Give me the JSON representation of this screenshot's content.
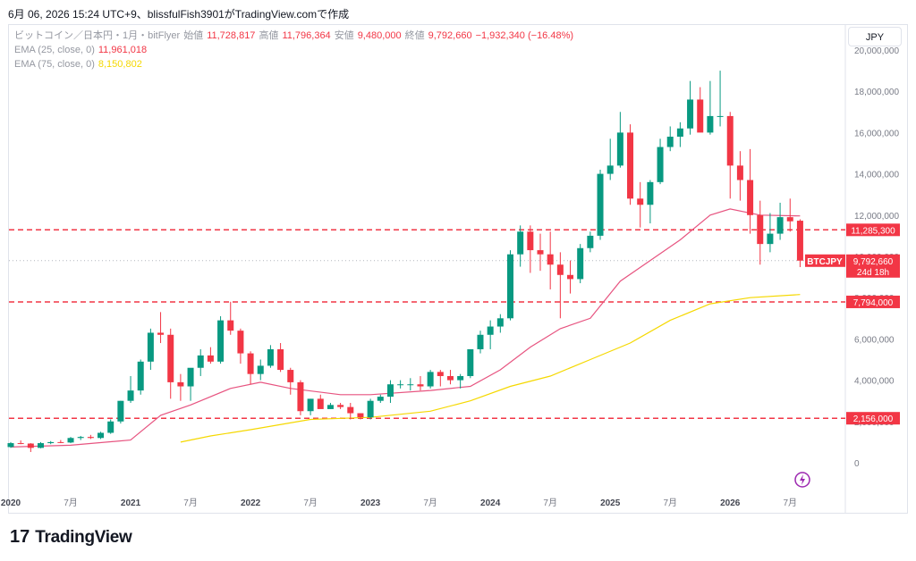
{
  "header": {
    "text": "6月 06, 2026 15:24 UTC+9、blissfulFish3901がTradingView.comで作成"
  },
  "legend": {
    "symbol": "ビットコイン／日本円・1月・bitFlyer",
    "open_label": "始値",
    "open": "11,728,817",
    "high_label": "高値",
    "high": "11,796,364",
    "low_label": "安値",
    "low": "9,480,000",
    "close_label": "終値",
    "close": "9,792,660",
    "change": "−1,932,340 (−16.48%)",
    "ema25_label": "EMA (25, close, 0)",
    "ema25_value": "11,961,018",
    "ema75_label": "EMA (75, close, 0)",
    "ema75_value": "8,150,802"
  },
  "currency_button": "JPY",
  "footer": {
    "logo": "17",
    "brand": "TradingView"
  },
  "colors": {
    "up": "#089981",
    "down": "#f23645",
    "ema25": "#e75480",
    "ema75": "#f5d800",
    "hline": "#f23645"
  },
  "chart_data": {
    "type": "candlestick",
    "interval": "1 month",
    "y_ticks": [
      0,
      2000000,
      4000000,
      6000000,
      8000000,
      10000000,
      12000000,
      14000000,
      16000000,
      18000000,
      20000000
    ],
    "y_tick_labels": [
      "0",
      "2,000,000",
      "4,000,000",
      "6,000,000",
      "8,000,000",
      "10,000,000",
      "12,000,000",
      "14,000,000",
      "16,000,000",
      "18,000,000",
      "20,000,000"
    ],
    "x_ticks": [
      {
        "label": "2020",
        "i": 0,
        "bold": true
      },
      {
        "label": "7月",
        "i": 6,
        "bold": false
      },
      {
        "label": "2021",
        "i": 12,
        "bold": true
      },
      {
        "label": "7月",
        "i": 18,
        "bold": false
      },
      {
        "label": "2022",
        "i": 24,
        "bold": true
      },
      {
        "label": "7月",
        "i": 30,
        "bold": false
      },
      {
        "label": "2023",
        "i": 36,
        "bold": true
      },
      {
        "label": "7月",
        "i": 42,
        "bold": false
      },
      {
        "label": "2024",
        "i": 48,
        "bold": true
      },
      {
        "label": "7月",
        "i": 54,
        "bold": false
      },
      {
        "label": "2025",
        "i": 60,
        "bold": true
      },
      {
        "label": "7月",
        "i": 66,
        "bold": false
      },
      {
        "label": "2026",
        "i": 72,
        "bold": true
      },
      {
        "label": "7月",
        "i": 78,
        "bold": false
      }
    ],
    "candles": [
      [
        760000,
        1000000,
        720000,
        950000
      ],
      [
        950000,
        1080000,
        900000,
        930000
      ],
      [
        930000,
        950000,
        520000,
        720000
      ],
      [
        720000,
        1000000,
        700000,
        950000
      ],
      [
        950000,
        1050000,
        900000,
        1000000
      ],
      [
        1000000,
        1100000,
        950000,
        980000
      ],
      [
        980000,
        1250000,
        950000,
        1200000
      ],
      [
        1200000,
        1300000,
        1100000,
        1250000
      ],
      [
        1250000,
        1350000,
        1150000,
        1200000
      ],
      [
        1200000,
        1500000,
        1150000,
        1450000
      ],
      [
        1450000,
        2100000,
        1400000,
        2000000
      ],
      [
        2000000,
        3000000,
        1900000,
        3000000
      ],
      [
        3000000,
        4200000,
        2900000,
        3500000
      ],
      [
        3500000,
        5000000,
        3300000,
        4900000
      ],
      [
        4900000,
        6500000,
        4500000,
        6300000
      ],
      [
        6300000,
        7300000,
        5800000,
        6200000
      ],
      [
        6200000,
        6500000,
        3100000,
        3900000
      ],
      [
        3900000,
        4300000,
        3000000,
        3700000
      ],
      [
        3700000,
        4500000,
        3000000,
        4600000
      ],
      [
        4600000,
        5500000,
        4200000,
        5200000
      ],
      [
        5200000,
        5600000,
        4800000,
        4900000
      ],
      [
        4900000,
        7100000,
        4800000,
        6900000
      ],
      [
        6900000,
        7800000,
        6200000,
        6400000
      ],
      [
        6400000,
        6500000,
        4800000,
        5300000
      ],
      [
        5300000,
        5400000,
        3800000,
        4300000
      ],
      [
        4300000,
        5000000,
        4000000,
        4700000
      ],
      [
        4700000,
        5700000,
        4600000,
        5500000
      ],
      [
        5500000,
        5800000,
        4400000,
        4500000
      ],
      [
        4500000,
        4600000,
        3300000,
        3900000
      ],
      [
        3900000,
        4000000,
        2300000,
        2500000
      ],
      [
        2500000,
        3100000,
        2300000,
        3100000
      ],
      [
        3100000,
        3300000,
        2700000,
        2600000
      ],
      [
        2600000,
        2900000,
        2600000,
        2800000
      ],
      [
        2800000,
        2900000,
        2600000,
        2700000
      ],
      [
        2700000,
        2900000,
        2100000,
        2400000
      ],
      [
        2400000,
        2400000,
        2100000,
        2200000
      ],
      [
        2200000,
        3100000,
        2100000,
        3000000
      ],
      [
        3000000,
        3300000,
        2900000,
        3200000
      ],
      [
        3200000,
        4000000,
        2900000,
        3800000
      ],
      [
        3800000,
        4000000,
        3600000,
        3800000
      ],
      [
        3800000,
        4100000,
        3500000,
        3800000
      ],
      [
        3800000,
        4200000,
        3500000,
        3700000
      ],
      [
        3700000,
        4500000,
        3600000,
        4400000
      ],
      [
        4400000,
        4500000,
        3700000,
        4200000
      ],
      [
        4200000,
        4500000,
        3800000,
        4000000
      ],
      [
        4000000,
        4300000,
        3600000,
        4200000
      ],
      [
        4200000,
        5500000,
        4100000,
        5500000
      ],
      [
        5500000,
        6400000,
        5300000,
        6200000
      ],
      [
        6200000,
        6900000,
        5500000,
        6600000
      ],
      [
        6600000,
        7200000,
        6300000,
        7000000
      ],
      [
        7000000,
        10300000,
        6900000,
        10100000
      ],
      [
        10100000,
        11500000,
        9500000,
        11200000
      ],
      [
        11200000,
        11500000,
        9200000,
        10300000
      ],
      [
        10300000,
        11100000,
        9300000,
        10100000
      ],
      [
        10100000,
        11200000,
        8400000,
        9600000
      ],
      [
        9600000,
        10200000,
        7000000,
        9100000
      ],
      [
        9100000,
        9800000,
        8200000,
        8900000
      ],
      [
        8900000,
        10600000,
        8700000,
        10400000
      ],
      [
        10400000,
        11200000,
        10200000,
        11000000
      ],
      [
        11000000,
        14200000,
        10800000,
        14000000
      ],
      [
        14000000,
        15700000,
        13700000,
        14400000
      ],
      [
        14400000,
        17000000,
        14300000,
        16000000
      ],
      [
        16000000,
        16400000,
        12500000,
        12800000
      ],
      [
        12800000,
        13600000,
        11400000,
        12500000
      ],
      [
        12500000,
        13700000,
        11600000,
        13600000
      ],
      [
        13600000,
        15700000,
        13500000,
        15300000
      ],
      [
        15300000,
        16300000,
        15100000,
        15800000
      ],
      [
        15800000,
        16500000,
        15300000,
        16200000
      ],
      [
        16200000,
        18500000,
        15900000,
        17600000
      ],
      [
        17600000,
        18200000,
        16100000,
        16000000
      ],
      [
        16000000,
        18500000,
        15900000,
        16800000
      ],
      [
        16800000,
        19000000,
        16300000,
        16800000
      ],
      [
        16800000,
        17000000,
        12800000,
        14400000
      ],
      [
        14400000,
        15100000,
        12700000,
        13700000
      ],
      [
        13700000,
        15200000,
        11100000,
        12000000
      ],
      [
        12000000,
        12700000,
        9600000,
        10600000
      ],
      [
        10600000,
        12100000,
        10200000,
        11100000
      ],
      [
        11100000,
        12600000,
        10800000,
        11900000
      ],
      [
        11900000,
        12800000,
        11200000,
        11700000
      ],
      [
        11728817,
        11796364,
        9480000,
        9792660
      ]
    ],
    "ema25": [
      [
        0,
        760000
      ],
      [
        6,
        850000
      ],
      [
        12,
        1100000
      ],
      [
        15,
        2300000
      ],
      [
        18,
        2800000
      ],
      [
        22,
        3600000
      ],
      [
        25,
        3900000
      ],
      [
        28,
        3600000
      ],
      [
        33,
        3300000
      ],
      [
        36,
        3300000
      ],
      [
        42,
        3500000
      ],
      [
        46,
        3700000
      ],
      [
        49,
        4500000
      ],
      [
        52,
        5600000
      ],
      [
        55,
        6500000
      ],
      [
        58,
        7000000
      ],
      [
        61,
        8800000
      ],
      [
        64,
        9800000
      ],
      [
        67,
        10800000
      ],
      [
        70,
        12000000
      ],
      [
        72,
        12300000
      ],
      [
        75,
        12000000
      ],
      [
        79,
        11961018
      ]
    ],
    "ema75": [
      [
        17,
        1000000
      ],
      [
        20,
        1300000
      ],
      [
        24,
        1600000
      ],
      [
        30,
        2100000
      ],
      [
        36,
        2200000
      ],
      [
        42,
        2500000
      ],
      [
        46,
        3000000
      ],
      [
        50,
        3700000
      ],
      [
        54,
        4200000
      ],
      [
        58,
        5000000
      ],
      [
        62,
        5800000
      ],
      [
        66,
        6900000
      ],
      [
        70,
        7700000
      ],
      [
        74,
        8000000
      ],
      [
        79,
        8150802
      ]
    ],
    "horizontal_lines": [
      {
        "value": 11285300,
        "label": "11,285,300"
      },
      {
        "value": 7794000,
        "label": "7,794,000"
      },
      {
        "value": 2156000,
        "label": "2,156,000"
      }
    ],
    "last_price": {
      "value": 9792660,
      "label": "9,792,660",
      "symbol": "BTCJPY",
      "countdown": "24d 18h"
    },
    "grid": false
  }
}
